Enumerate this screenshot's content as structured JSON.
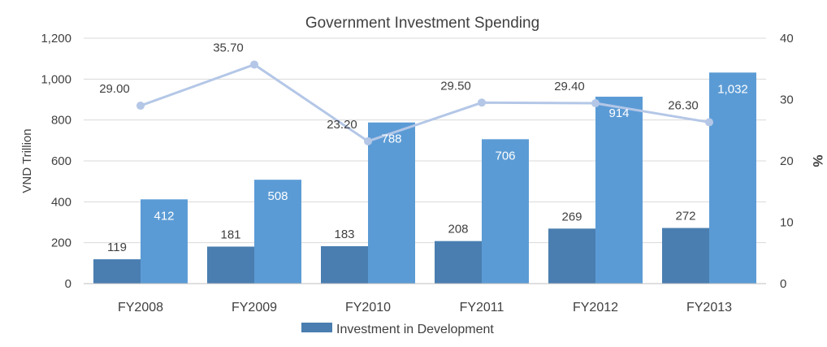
{
  "chart_data": {
    "type": "bar",
    "title": "Government Investment Spending",
    "categories": [
      "FY2008",
      "FY2009",
      "FY2010",
      "FY2011",
      "FY2012",
      "FY2013"
    ],
    "ylabel": "VND Trillion",
    "y2label": "%",
    "ylim": [
      0,
      1200
    ],
    "y2lim": [
      0,
      40
    ],
    "yticks": [
      "0",
      "200",
      "400",
      "600",
      "800",
      "1,000",
      "1,200"
    ],
    "y2ticks": [
      "0",
      "10",
      "20",
      "30",
      "40"
    ],
    "grid": true,
    "legend_position": "bottom",
    "series": [
      {
        "name": "Investment in Development",
        "type": "bar",
        "axis": "left",
        "color": "#4a7eb0",
        "values": [
          119,
          181,
          183,
          208,
          269,
          272
        ],
        "labels": [
          "119",
          "181",
          "183",
          "208",
          "269",
          "272"
        ]
      },
      {
        "type": "bar",
        "axis": "left",
        "color": "#5b9bd5",
        "values": [
          412,
          508,
          788,
          706,
          914,
          1032
        ],
        "labels": [
          "412",
          "508",
          "788",
          "706",
          "914",
          "1,032"
        ]
      },
      {
        "type": "line",
        "axis": "right",
        "color": "#b4c7e7",
        "values": [
          29.0,
          35.7,
          23.2,
          29.5,
          29.4,
          26.3
        ],
        "labels": [
          "29.00",
          "35.70",
          "23.20",
          "29.50",
          "29.40",
          "26.30"
        ]
      }
    ]
  }
}
